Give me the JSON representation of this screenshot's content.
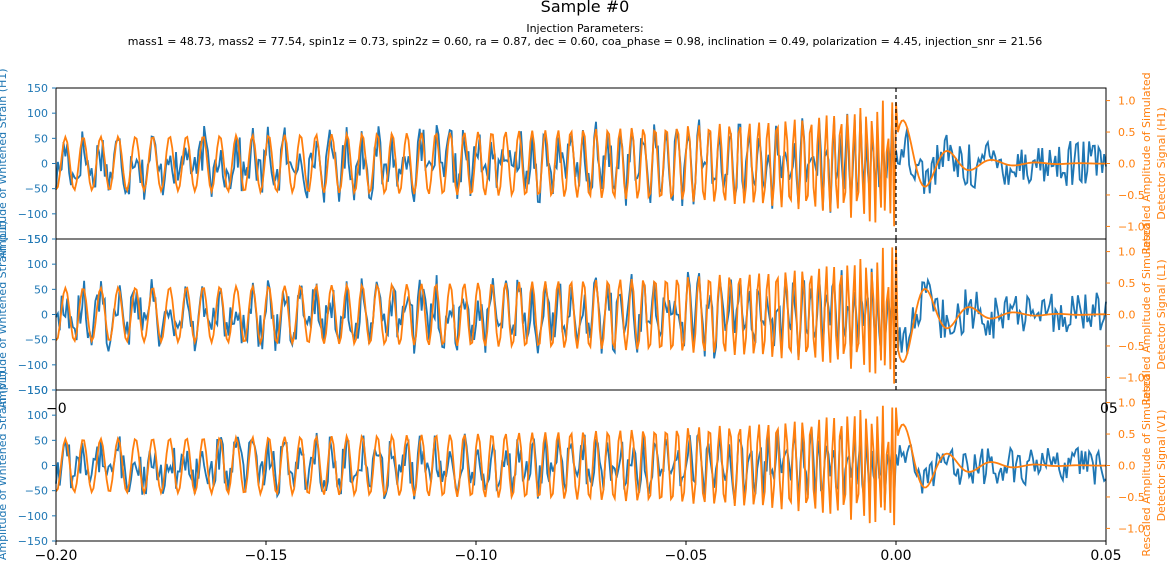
{
  "figure": {
    "title": "Sample #0",
    "subtitle_line1": "Injection Parameters:",
    "subtitle_line2": "mass1 = 48.73, mass2 = 77.54, spin1z = 0.73, spin2z = 0.60, ra = 0.87, dec = 0.60, coa_phase = 0.98, inclination = 0.49, polarization = 4.45, injection_snr = 21.56"
  },
  "colors": {
    "strain": "#1f77b4",
    "signal": "#ff7f0e",
    "axis": "#000000",
    "marker": "#000000"
  },
  "chart_data": [
    {
      "type": "line",
      "panel": "H1",
      "ylabel_left": "Amplitude of Whitened Strain (H1)",
      "ylabel_right": "Rescaled Amplitude of Simulated Detector Signal (H1)",
      "xlim": [
        -0.2,
        0.05
      ],
      "ylim_left": [
        -150,
        150
      ],
      "ylim_right": [
        -1.2,
        1.2
      ],
      "yticks_left": [
        "150",
        "100",
        "50",
        "0",
        "−50",
        "−100",
        "−150"
      ],
      "yticks_right": [
        "1.0",
        "0.5",
        "0.0",
        "−0.5",
        "−1.0"
      ],
      "event_time": 0.0,
      "series": [
        {
          "axis": "left",
          "role": "strain",
          "noise_amplitude": 38,
          "signal_coupling": 70
        },
        {
          "axis": "right",
          "role": "signal",
          "peak": 1.0,
          "tail_sign": 1
        }
      ]
    },
    {
      "type": "line",
      "panel": "L1",
      "ylabel_left": "Amplitude of Whitened Strain (L1)",
      "ylabel_right": "Rescaled Amplitude of Simulated Detector Signal (L1)",
      "xlim": [
        -0.2,
        0.05
      ],
      "ylim_left": [
        -150,
        150
      ],
      "ylim_right": [
        -1.2,
        1.2
      ],
      "yticks_left": [
        "150",
        "100",
        "50",
        "0",
        "−50",
        "−100",
        "−150"
      ],
      "yticks_right": [
        "1.0",
        "0.5",
        "0.0",
        "−0.5",
        "−1.0"
      ],
      "xticks_partial": [
        "−0",
        "05"
      ],
      "event_time": 0.0,
      "series": [
        {
          "axis": "left",
          "role": "strain",
          "noise_amplitude": 36,
          "signal_coupling": 75
        },
        {
          "axis": "right",
          "role": "signal",
          "peak": 1.1,
          "tail_sign": -1
        }
      ]
    },
    {
      "type": "line",
      "panel": "V1",
      "ylabel_left": "Amplitude of Whitened Strain (V1)",
      "ylabel_right": "Rescaled Amplitude of Simulated Detector Signal (V1)",
      "xlim": [
        -0.2,
        0.05
      ],
      "ylim_left": [
        -150,
        150
      ],
      "ylim_right": [
        -1.2,
        1.2
      ],
      "yticks_left": [
        "150",
        "100",
        "50",
        "0",
        "−50",
        "−100",
        "−150"
      ],
      "yticks_right": [
        "1.0",
        "0.5",
        "0.0",
        "−0.5",
        "−1.0"
      ],
      "xticks": [
        "−0.20",
        "−0.15",
        "−0.10",
        "−0.05",
        "0.00",
        "0.05"
      ],
      "event_time": null,
      "series": [
        {
          "axis": "left",
          "role": "strain",
          "noise_amplitude": 32,
          "signal_coupling": 60
        },
        {
          "axis": "right",
          "role": "signal",
          "peak": 0.95,
          "tail_sign": 1
        }
      ]
    }
  ]
}
